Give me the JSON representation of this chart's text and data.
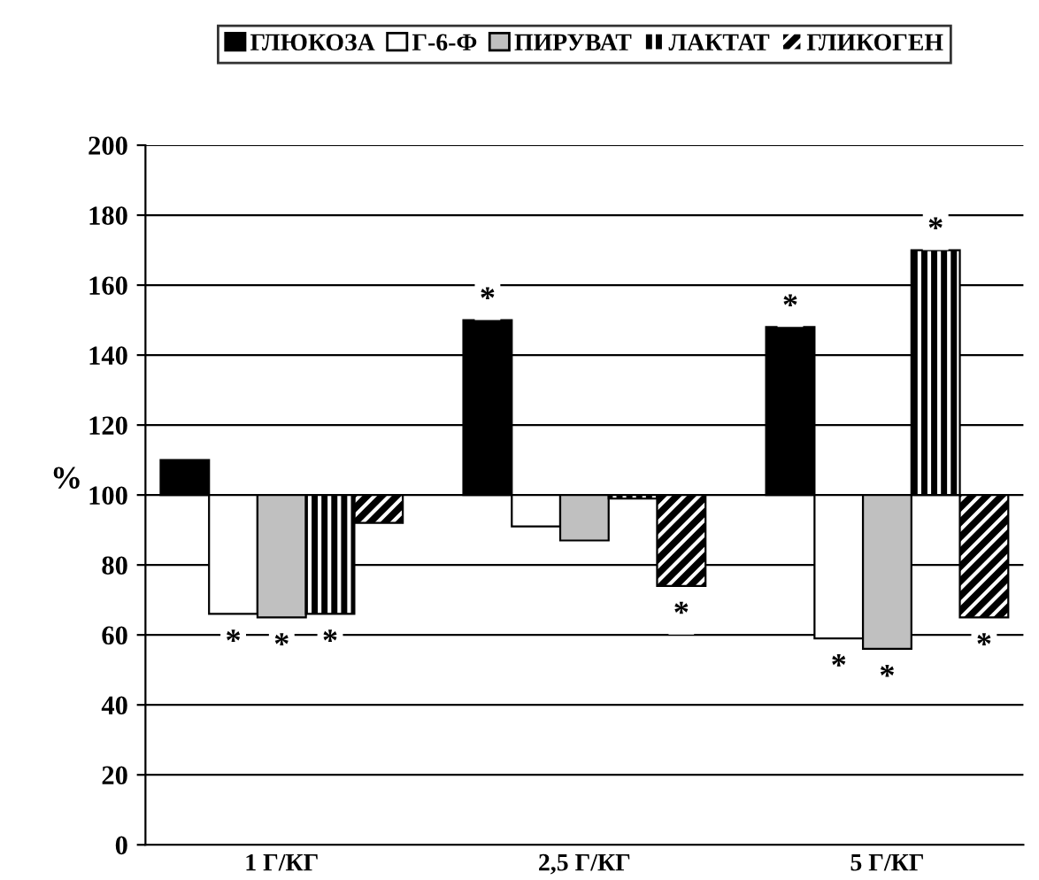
{
  "chart_data": {
    "type": "bar",
    "categories": [
      "1 Г/КГ",
      "2,5 Г/КГ",
      "5 Г/КГ"
    ],
    "ylabel": "%",
    "series": [
      {
        "name": "ГЛЮКОЗА",
        "color": "#000000",
        "base": [
          100,
          100,
          100
        ],
        "values": [
          10,
          50,
          48
        ],
        "value_labels": [
          null,
          "*",
          "*"
        ]
      },
      {
        "name": "Г-6-Ф",
        "color": "#ffffff",
        "base": [
          100,
          100,
          100
        ],
        "values": [
          -34,
          -9,
          -41
        ],
        "value_labels": [
          "*",
          null,
          "*"
        ]
      },
      {
        "name": "ПИРУВАТ",
        "color": "#c0c0c0",
        "base": [
          100,
          100,
          100
        ],
        "values": [
          -35,
          -13,
          -44
        ],
        "value_labels": [
          "*",
          null,
          "*"
        ]
      },
      {
        "name": "ЛАКТАТ",
        "color": "#000000",
        "base": [
          100,
          100,
          100
        ],
        "values": [
          -34,
          -1,
          70
        ],
        "value_labels": [
          "*",
          null,
          "*"
        ]
      },
      {
        "name": "ГЛИКОГЕН",
        "color": "#000000",
        "base": [
          100,
          100,
          100
        ],
        "values": [
          -8,
          -26,
          -35
        ],
        "value_labels": [
          null,
          "*",
          "*"
        ]
      }
    ],
    "ylim": [
      0,
      200
    ],
    "yticks": [
      0,
      20,
      40,
      60,
      80,
      100,
      120,
      140,
      160,
      180,
      200
    ],
    "grid": "y",
    "legend": "top"
  }
}
